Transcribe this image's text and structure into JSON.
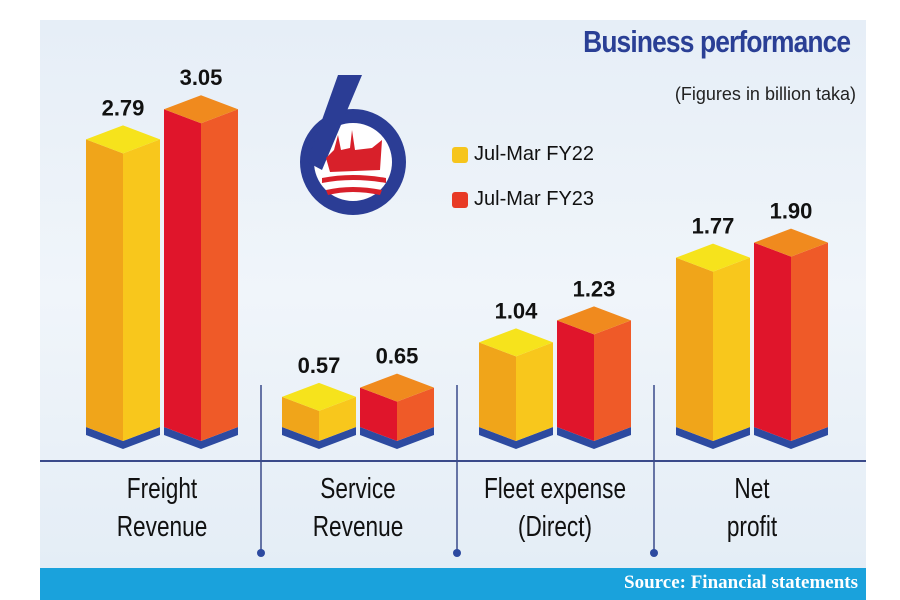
{
  "chart_data": {
    "type": "bar",
    "title": "Business performance",
    "subtitle": "(Figures in billion taka)",
    "categories": [
      "Freight\nRevenue",
      "Service\nRevenue",
      "Fleet expense\n(Direct)",
      "Net\nprofit"
    ],
    "series": [
      {
        "name": "Jul-Mar FY22",
        "values": [
          2.79,
          0.57,
          1.04,
          1.77
        ],
        "labels": [
          "2.79",
          "0.57",
          "1.04",
          "1.77"
        ],
        "colors": {
          "top": "#f6e31c",
          "left": "#f0a51a",
          "right": "#f8c71c"
        }
      },
      {
        "name": "Jul-Mar FY23",
        "values": [
          3.05,
          0.65,
          1.23,
          1.9
        ],
        "labels": [
          "3.05",
          "0.65",
          "1.23",
          "1.90"
        ],
        "colors": {
          "top": "#f08a1e",
          "left": "#e0152b",
          "right": "#ef5a28"
        }
      }
    ],
    "legend": "top-center",
    "grid": false,
    "base_color": "#2d4aa0",
    "source": "Source: Financial statements"
  }
}
